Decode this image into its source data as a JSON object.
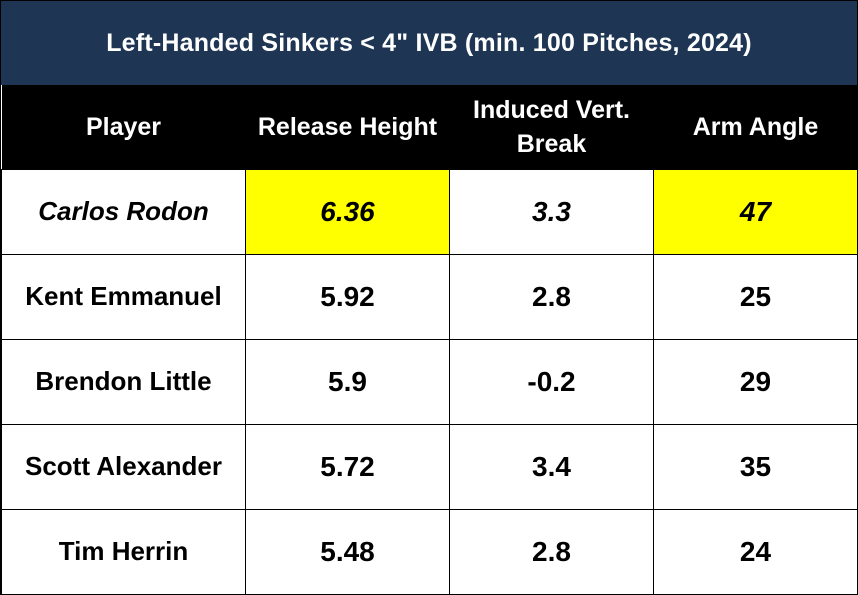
{
  "title": "Left-Handed Sinkers < 4\" IVB (min. 100 Pitches, 2024)",
  "colors": {
    "title_bg": "#1e3653",
    "header_bg": "#000000",
    "highlight": "#ffff00"
  },
  "chart_data": {
    "type": "table",
    "title": "Left-Handed Sinkers < 4\" IVB (min. 100 Pitches, 2024)",
    "columns": [
      "Player",
      "Release Height",
      "Induced Vert. Break",
      "Arm Angle"
    ],
    "rows": [
      {
        "player": "Carlos Rodon",
        "release_height": "6.36",
        "ivb": "3.3",
        "arm_angle": "47",
        "highlight": [
          "release_height",
          "arm_angle"
        ],
        "italic": true
      },
      {
        "player": "Kent Emmanuel",
        "release_height": "5.92",
        "ivb": "2.8",
        "arm_angle": "25"
      },
      {
        "player": "Brendon Little",
        "release_height": "5.9",
        "ivb": "-0.2",
        "arm_angle": "29"
      },
      {
        "player": "Scott Alexander",
        "release_height": "5.72",
        "ivb": "3.4",
        "arm_angle": "35"
      },
      {
        "player": "Tim Herrin",
        "release_height": "5.48",
        "ivb": "2.8",
        "arm_angle": "24"
      }
    ]
  }
}
